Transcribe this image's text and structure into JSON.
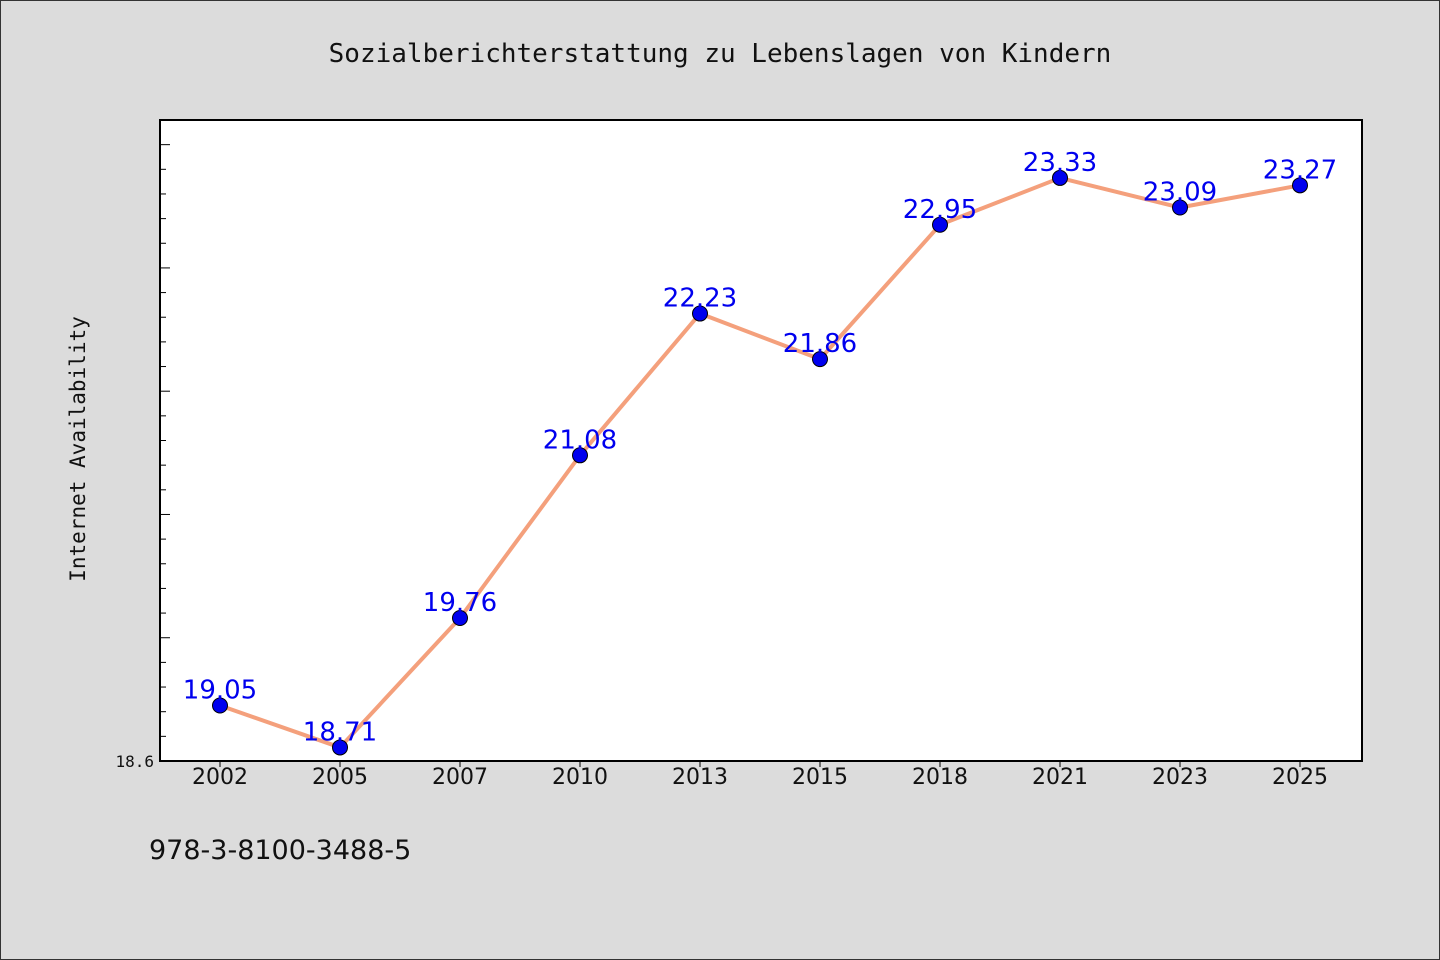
{
  "chart_data": {
    "type": "line",
    "title": "Sozialberichterstattung zu Lebenslagen von Kindern",
    "xlabel": "",
    "ylabel": "Internet Availability",
    "categories": [
      "2002",
      "2005",
      "2007",
      "2010",
      "2013",
      "2015",
      "2018",
      "2021",
      "2023",
      "2025"
    ],
    "series": [
      {
        "values": [
          19.05,
          18.71,
          19.76,
          21.08,
          22.23,
          21.86,
          22.95,
          23.33,
          23.09,
          23.27
        ],
        "labels": [
          "19.05",
          "18.71",
          "19.76",
          "21.08",
          "22.23",
          "21.86",
          "22.95",
          "23.33",
          "23.09",
          "23.27"
        ]
      }
    ],
    "ylim": [
      18.6,
      23.8
    ],
    "yticks": [
      "18.6"
    ],
    "grid": false,
    "colors": {
      "line": "#f4a07c",
      "marker": "#0000ee",
      "label": "#0000ee"
    }
  },
  "footnote": "978-3-8100-3488-5"
}
